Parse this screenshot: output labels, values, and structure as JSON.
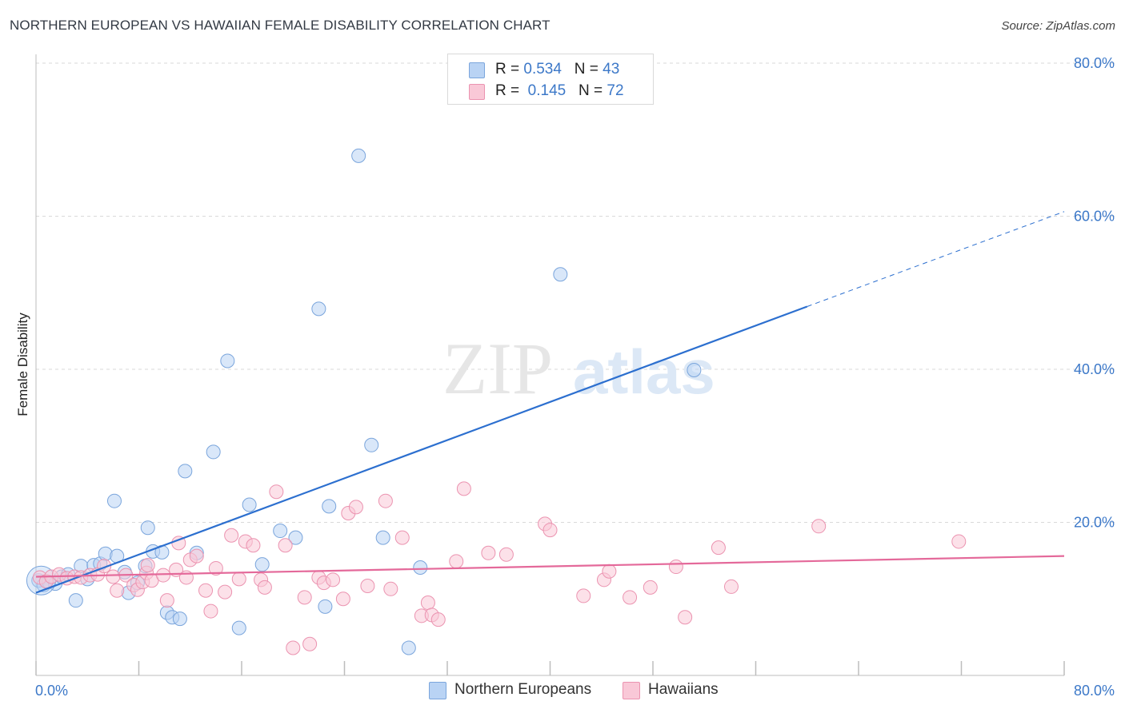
{
  "title": "NORTHERN EUROPEAN VS HAWAIIAN FEMALE DISABILITY CORRELATION CHART",
  "source": "Source: ZipAtlas.com",
  "watermark": {
    "part1": "ZIP",
    "part2": "atlas"
  },
  "colors": {
    "blue_fill": "#b9d3f4",
    "blue_stroke": "#7aa5dc",
    "blue_line": "#2c6fcf",
    "pink_fill": "#f9c8d7",
    "pink_stroke": "#eb93b0",
    "pink_line": "#e4699a",
    "axis_label": "#3c78c8",
    "grid": "#d9d9d9"
  },
  "legend_top": {
    "rows": [
      {
        "r_label": "R = ",
        "r_value": "0.534",
        "n_label": "N = ",
        "n_value": "43",
        "color": "#b9d3f4",
        "border": "#7aa5dc"
      },
      {
        "r_label": "R = ",
        "r_value": "0.145",
        "n_label": "N = ",
        "n_value": "72",
        "color": "#f9c8d7",
        "border": "#eb93b0"
      }
    ]
  },
  "legend_bottom": [
    {
      "label": "Northern Europeans",
      "color": "#b9d3f4",
      "border": "#7aa5dc"
    },
    {
      "label": "Hawaiians",
      "color": "#f9c8d7",
      "border": "#eb93b0"
    }
  ],
  "chart_data": {
    "type": "scatter",
    "title": "NORTHERN EUROPEAN VS HAWAIIAN FEMALE DISABILITY CORRELATION CHART",
    "xlabel": "",
    "ylabel": "Female Disability",
    "xlim": [
      0,
      80
    ],
    "ylim": [
      0,
      80
    ],
    "x_tick_labels": [
      "0.0%",
      "80.0%"
    ],
    "y_tick_labels": [
      "20.0%",
      "40.0%",
      "60.0%",
      "80.0%"
    ],
    "y_ticks": [
      20,
      40,
      60,
      80
    ],
    "grid": true,
    "legend_position": "top-center",
    "series": [
      {
        "name": "Northern Europeans",
        "r": 0.534,
        "n": 43,
        "trend": {
          "x": [
            0,
            60
          ],
          "y": [
            10.8,
            48.2
          ],
          "extend_to": [
            80,
            60.6
          ]
        },
        "points": [
          [
            0.2,
            12.4
          ],
          [
            0.6,
            11.8
          ],
          [
            1.0,
            12.2
          ],
          [
            1.5,
            12.0
          ],
          [
            2.0,
            12.9
          ],
          [
            2.5,
            13.2
          ],
          [
            3.1,
            9.8
          ],
          [
            3.5,
            14.3
          ],
          [
            4.0,
            12.6
          ],
          [
            4.5,
            14.4
          ],
          [
            5.0,
            14.6
          ],
          [
            5.4,
            15.9
          ],
          [
            6.1,
            22.8
          ],
          [
            6.3,
            15.6
          ],
          [
            6.9,
            13.5
          ],
          [
            7.2,
            10.8
          ],
          [
            7.9,
            12.1
          ],
          [
            8.5,
            14.3
          ],
          [
            8.7,
            19.3
          ],
          [
            9.1,
            16.2
          ],
          [
            9.8,
            16.1
          ],
          [
            10.2,
            8.2
          ],
          [
            10.6,
            7.6
          ],
          [
            11.2,
            7.4
          ],
          [
            11.6,
            26.7
          ],
          [
            12.5,
            16.0
          ],
          [
            13.8,
            29.2
          ],
          [
            14.9,
            41.1
          ],
          [
            15.8,
            6.2
          ],
          [
            16.6,
            22.3
          ],
          [
            17.6,
            14.5
          ],
          [
            19.0,
            18.9
          ],
          [
            20.2,
            18.0
          ],
          [
            22.0,
            47.9
          ],
          [
            22.5,
            9.0
          ],
          [
            22.8,
            22.1
          ],
          [
            25.1,
            67.9
          ],
          [
            26.1,
            30.1
          ],
          [
            27.0,
            18.0
          ],
          [
            29.0,
            3.6
          ],
          [
            29.9,
            14.1
          ],
          [
            40.8,
            52.4
          ],
          [
            51.2,
            39.9
          ]
        ]
      },
      {
        "name": "Hawaiians",
        "r": 0.145,
        "n": 72,
        "trend": {
          "x": [
            0,
            80
          ],
          "y": [
            12.9,
            15.6
          ]
        },
        "points": [
          [
            0.3,
            12.8
          ],
          [
            0.8,
            12.3
          ],
          [
            1.2,
            12.9
          ],
          [
            1.8,
            13.2
          ],
          [
            2.4,
            12.7
          ],
          [
            3.0,
            12.9
          ],
          [
            3.5,
            12.8
          ],
          [
            4.2,
            13.1
          ],
          [
            4.8,
            13.2
          ],
          [
            5.3,
            14.3
          ],
          [
            6.0,
            12.9
          ],
          [
            6.3,
            11.1
          ],
          [
            7.0,
            13.1
          ],
          [
            7.6,
            11.8
          ],
          [
            7.9,
            11.2
          ],
          [
            8.3,
            12.2
          ],
          [
            8.6,
            13.4
          ],
          [
            8.7,
            14.4
          ],
          [
            9.0,
            12.4
          ],
          [
            9.9,
            13.1
          ],
          [
            10.2,
            9.8
          ],
          [
            10.9,
            13.8
          ],
          [
            11.1,
            17.3
          ],
          [
            11.7,
            12.8
          ],
          [
            12.0,
            15.1
          ],
          [
            12.5,
            15.6
          ],
          [
            13.2,
            11.1
          ],
          [
            13.6,
            8.4
          ],
          [
            14.0,
            14.0
          ],
          [
            14.7,
            10.9
          ],
          [
            15.2,
            18.3
          ],
          [
            15.8,
            12.6
          ],
          [
            16.3,
            17.5
          ],
          [
            16.9,
            17.0
          ],
          [
            17.5,
            12.5
          ],
          [
            17.8,
            11.5
          ],
          [
            18.7,
            24.0
          ],
          [
            19.4,
            17.0
          ],
          [
            20.0,
            3.6
          ],
          [
            20.9,
            10.2
          ],
          [
            21.3,
            4.1
          ],
          [
            22.0,
            12.8
          ],
          [
            22.4,
            12.1
          ],
          [
            23.1,
            12.5
          ],
          [
            23.9,
            10.0
          ],
          [
            24.3,
            21.2
          ],
          [
            24.9,
            22.0
          ],
          [
            25.8,
            11.7
          ],
          [
            27.2,
            22.8
          ],
          [
            27.6,
            11.3
          ],
          [
            28.5,
            18.0
          ],
          [
            30.0,
            7.8
          ],
          [
            30.5,
            9.5
          ],
          [
            30.8,
            7.9
          ],
          [
            31.3,
            7.3
          ],
          [
            32.7,
            14.9
          ],
          [
            33.3,
            24.4
          ],
          [
            35.2,
            16.0
          ],
          [
            36.6,
            15.8
          ],
          [
            39.6,
            19.8
          ],
          [
            40.0,
            19.0
          ],
          [
            42.6,
            10.4
          ],
          [
            44.2,
            12.5
          ],
          [
            44.6,
            13.6
          ],
          [
            46.2,
            10.2
          ],
          [
            47.8,
            11.5
          ],
          [
            49.8,
            14.2
          ],
          [
            50.5,
            7.6
          ],
          [
            53.1,
            16.7
          ],
          [
            54.1,
            11.6
          ],
          [
            60.9,
            19.5
          ],
          [
            71.8,
            17.5
          ]
        ]
      }
    ]
  }
}
